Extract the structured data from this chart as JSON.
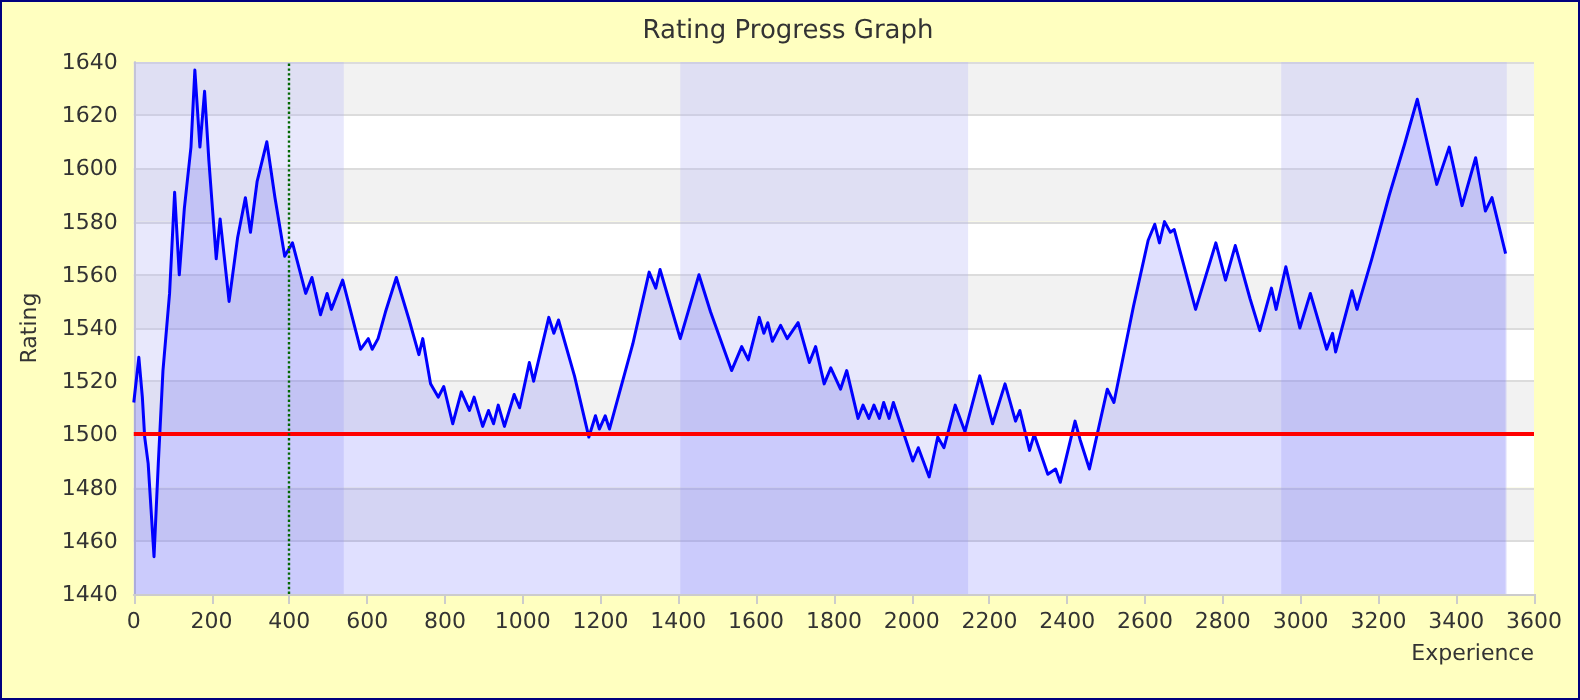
{
  "chart_data": {
    "type": "area",
    "title": "Rating Progress Graph",
    "xlabel": "Experience",
    "ylabel": "Rating",
    "xlim": [
      0,
      3600
    ],
    "xticks": [
      0,
      200,
      400,
      600,
      800,
      1000,
      1200,
      1400,
      1600,
      1800,
      2000,
      2200,
      2400,
      2600,
      2800,
      3000,
      3200,
      3400,
      3600
    ],
    "ylim": [
      1440,
      1640
    ],
    "yticks": [
      1440,
      1460,
      1480,
      1500,
      1520,
      1540,
      1560,
      1580,
      1600,
      1620,
      1640
    ],
    "grid": "y",
    "series": [
      {
        "color": "#0000ff",
        "x": [
          0,
          13,
          22,
          28,
          37,
          52,
          63,
          75,
          92,
          105,
          117,
          130,
          147,
          157,
          170,
          182,
          193,
          212,
          222,
          245,
          267,
          287,
          300,
          317,
          342,
          363,
          388,
          408,
          442,
          458,
          480,
          497,
          508,
          537,
          583,
          603,
          613,
          628,
          647,
          675,
          708,
          733,
          743,
          763,
          783,
          797,
          820,
          842,
          863,
          875,
          897,
          912,
          925,
          937,
          953,
          978,
          992,
          1017,
          1028,
          1067,
          1080,
          1092,
          1133,
          1170,
          1187,
          1197,
          1212,
          1223,
          1283,
          1325,
          1342,
          1353,
          1405,
          1453,
          1483,
          1537,
          1563,
          1580,
          1608,
          1620,
          1630,
          1642,
          1663,
          1680,
          1708,
          1737,
          1753,
          1775,
          1792,
          1817,
          1833,
          1862,
          1875,
          1890,
          1903,
          1917,
          1928,
          1942,
          1953,
          2003,
          2017,
          2045,
          2067,
          2083,
          2112,
          2137,
          2175,
          2208,
          2240,
          2267,
          2278,
          2303,
          2315,
          2350,
          2370,
          2382,
          2420,
          2433,
          2457,
          2503,
          2520,
          2570,
          2608,
          2625,
          2637,
          2650,
          2665,
          2675,
          2730,
          2782,
          2807,
          2832,
          2870,
          2895,
          2925,
          2937,
          2962,
          2998,
          3025,
          3067,
          3082,
          3090,
          3132,
          3145,
          3183,
          3228,
          3267,
          3300,
          3350,
          3382,
          3415,
          3450,
          3475,
          3492,
          3527
        ],
        "values": [
          1512,
          1529,
          1514,
          1499,
          1489,
          1454,
          1489,
          1524,
          1553,
          1591,
          1560,
          1585,
          1608,
          1637,
          1608,
          1629,
          1603,
          1566,
          1581,
          1550,
          1574,
          1589,
          1576,
          1595,
          1610,
          1589,
          1567,
          1572,
          1553,
          1559,
          1545,
          1553,
          1547,
          1558,
          1532,
          1536,
          1532,
          1536,
          1546,
          1559,
          1543,
          1530,
          1536,
          1519,
          1514,
          1518,
          1504,
          1516,
          1509,
          1514,
          1503,
          1509,
          1504,
          1511,
          1503,
          1515,
          1510,
          1527,
          1520,
          1544,
          1538,
          1543,
          1522,
          1499,
          1507,
          1502,
          1507,
          1502,
          1534,
          1561,
          1555,
          1562,
          1536,
          1560,
          1546,
          1524,
          1533,
          1528,
          1544,
          1538,
          1542,
          1535,
          1541,
          1536,
          1542,
          1527,
          1533,
          1519,
          1525,
          1517,
          1524,
          1506,
          1511,
          1506,
          1511,
          1506,
          1512,
          1506,
          1512,
          1490,
          1495,
          1484,
          1499,
          1495,
          1511,
          1501,
          1522,
          1504,
          1519,
          1505,
          1509,
          1494,
          1500,
          1485,
          1487,
          1482,
          1505,
          1498,
          1487,
          1517,
          1512,
          1548,
          1573,
          1579,
          1572,
          1580,
          1576,
          1577,
          1547,
          1572,
          1558,
          1571,
          1551,
          1539,
          1555,
          1547,
          1563,
          1540,
          1553,
          1532,
          1538,
          1531,
          1554,
          1547,
          1566,
          1590,
          1609,
          1626,
          1594,
          1608,
          1586,
          1604,
          1584,
          1589,
          1568
        ]
      }
    ],
    "ref_lines": [
      {
        "axis": "y",
        "value": 1500,
        "color": "#ff0000",
        "line_style": "solid"
      },
      {
        "axis": "x",
        "value": 400,
        "color": "#006600",
        "line_style": "dotted"
      }
    ],
    "bands": [
      {
        "axis": "x",
        "from": 0,
        "to": 540,
        "color": "#b4b4f5"
      },
      {
        "axis": "x",
        "from": 1405,
        "to": 2145,
        "color": "#b4b4f5"
      },
      {
        "axis": "x",
        "from": 2950,
        "to": 3530,
        "color": "#b4b4f5"
      }
    ]
  }
}
